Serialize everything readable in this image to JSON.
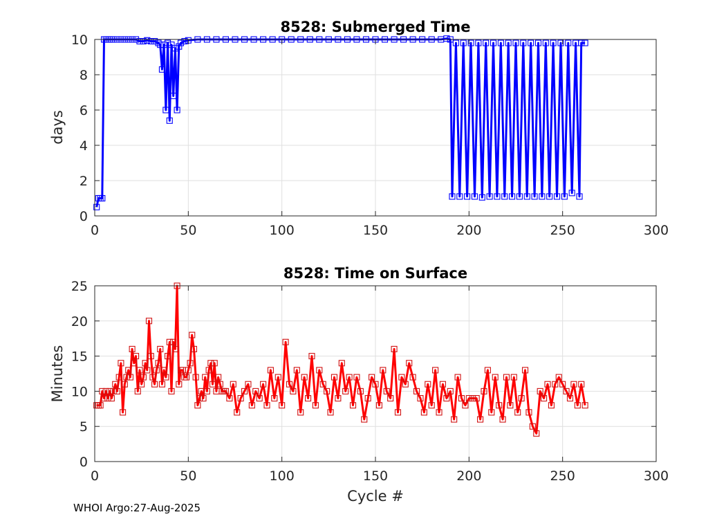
{
  "footer": "WHOI Argo:27-Aug-2025",
  "chart_data": [
    {
      "type": "line",
      "title": "8528: Submerged Time",
      "xlabel": "",
      "ylabel": "days",
      "xlim": [
        0,
        300
      ],
      "ylim": [
        0,
        10
      ],
      "xticks": [
        0,
        50,
        100,
        150,
        200,
        250,
        300
      ],
      "yticks": [
        0,
        2,
        4,
        6,
        8,
        10
      ],
      "grid": true,
      "marker": "square",
      "line_color": "#0000ff",
      "marker_color": "#0000ff",
      "series": [
        {
          "name": "Submerged Time",
          "x": [
            1,
            2,
            3,
            4,
            5,
            6,
            7,
            8,
            9,
            10,
            12,
            14,
            16,
            18,
            20,
            22,
            24,
            26,
            28,
            30,
            32,
            34,
            35,
            36,
            37,
            38,
            39,
            40,
            41,
            42,
            43,
            44,
            45,
            46,
            48,
            50,
            55,
            60,
            65,
            70,
            75,
            80,
            85,
            90,
            95,
            100,
            105,
            110,
            115,
            120,
            125,
            130,
            135,
            140,
            145,
            150,
            155,
            160,
            165,
            170,
            175,
            180,
            185,
            188,
            190,
            191,
            193,
            195,
            197,
            199,
            201,
            203,
            205,
            207,
            209,
            211,
            213,
            215,
            217,
            219,
            221,
            223,
            225,
            227,
            229,
            231,
            233,
            235,
            237,
            239,
            241,
            243,
            245,
            247,
            249,
            251,
            253,
            255,
            257,
            259,
            260,
            262
          ],
          "y": [
            0.5,
            1.0,
            1.0,
            1.0,
            10.0,
            10.0,
            10.0,
            10.0,
            10.0,
            10.0,
            10.0,
            10.0,
            10.0,
            10.0,
            10.0,
            10.0,
            9.9,
            9.9,
            9.95,
            9.9,
            9.9,
            9.8,
            9.7,
            8.3,
            9.7,
            6.0,
            9.8,
            5.4,
            9.7,
            6.8,
            9.5,
            6.0,
            9.6,
            9.8,
            9.9,
            9.95,
            10.0,
            10.0,
            10.0,
            10.0,
            10.0,
            10.0,
            10.0,
            10.0,
            10.0,
            10.0,
            10.0,
            10.0,
            10.0,
            10.0,
            10.0,
            10.0,
            10.0,
            10.0,
            10.0,
            10.0,
            10.0,
            10.0,
            10.0,
            10.0,
            10.0,
            10.0,
            10.0,
            10.05,
            10.0,
            1.1,
            9.8,
            1.1,
            9.8,
            1.1,
            9.8,
            1.1,
            9.8,
            1.05,
            9.8,
            1.1,
            9.8,
            1.1,
            9.8,
            1.1,
            9.8,
            1.1,
            9.8,
            1.1,
            9.8,
            1.1,
            9.8,
            1.1,
            9.8,
            1.1,
            9.8,
            1.1,
            9.8,
            1.1,
            9.8,
            1.1,
            9.8,
            1.3,
            9.8,
            1.1,
            9.8,
            9.8
          ]
        }
      ]
    },
    {
      "type": "line",
      "title": "8528: Time on Surface",
      "xlabel": "Cycle #",
      "ylabel": "Minutes",
      "xlim": [
        0,
        300
      ],
      "ylim": [
        0,
        25
      ],
      "xticks": [
        0,
        50,
        100,
        150,
        200,
        250,
        300
      ],
      "yticks": [
        0,
        5,
        10,
        15,
        20,
        25
      ],
      "grid": true,
      "marker": "square",
      "line_color": "#ff0000",
      "marker_color": "#ff0000",
      "series": [
        {
          "name": "Time on Surface",
          "x": [
            1,
            2,
            3,
            4,
            5,
            6,
            7,
            8,
            9,
            10,
            11,
            12,
            13,
            14,
            15,
            16,
            17,
            18,
            19,
            20,
            21,
            22,
            23,
            24,
            25,
            26,
            27,
            28,
            29,
            30,
            31,
            32,
            33,
            34,
            35,
            36,
            37,
            38,
            39,
            40,
            41,
            42,
            43,
            44,
            45,
            46,
            47,
            48,
            49,
            50,
            51,
            52,
            53,
            54,
            55,
            56,
            57,
            58,
            59,
            60,
            61,
            62,
            63,
            64,
            65,
            66,
            67,
            68,
            69,
            70,
            72,
            74,
            76,
            78,
            80,
            82,
            84,
            86,
            88,
            90,
            92,
            94,
            96,
            98,
            100,
            102,
            104,
            106,
            108,
            110,
            112,
            114,
            116,
            118,
            120,
            122,
            124,
            126,
            128,
            130,
            132,
            134,
            136,
            138,
            140,
            142,
            144,
            146,
            148,
            150,
            152,
            154,
            156,
            158,
            160,
            162,
            164,
            166,
            168,
            170,
            172,
            174,
            176,
            178,
            180,
            182,
            184,
            186,
            188,
            190,
            192,
            194,
            196,
            198,
            200,
            202,
            204,
            206,
            208,
            210,
            212,
            214,
            216,
            218,
            220,
            222,
            224,
            226,
            228,
            230,
            232,
            234,
            236,
            238,
            240,
            242,
            244,
            246,
            248,
            250,
            252,
            254,
            256,
            258,
            260,
            262
          ],
          "y": [
            8,
            8,
            8,
            10,
            9,
            10,
            9,
            10,
            9,
            10,
            11,
            10,
            12,
            14,
            7,
            11,
            12,
            13,
            12,
            16,
            14,
            15,
            10,
            13,
            11,
            12,
            14,
            13,
            20,
            15,
            12,
            11,
            13,
            14,
            16,
            11,
            13,
            12,
            15,
            17,
            10,
            17,
            16,
            25,
            11,
            13,
            13,
            12,
            12,
            13,
            14,
            18,
            16,
            12,
            8,
            9,
            10,
            9,
            12,
            10,
            13,
            14,
            11,
            14,
            10,
            12,
            11,
            10,
            10,
            10,
            9,
            11,
            7,
            9,
            10,
            11,
            8,
            10,
            9,
            11,
            8,
            13,
            9,
            12,
            8,
            17,
            11,
            10,
            13,
            7,
            12,
            9,
            15,
            8,
            13,
            11,
            10,
            7,
            12,
            9,
            14,
            10,
            12,
            8,
            12,
            10,
            6,
            9,
            12,
            11,
            8,
            13,
            10,
            9,
            16,
            7,
            12,
            11,
            14,
            12,
            10,
            9,
            7,
            11,
            8,
            13,
            7,
            11,
            9,
            10,
            6,
            12,
            9,
            8,
            9,
            9,
            9,
            6,
            10,
            13,
            7,
            12,
            8,
            6,
            12,
            8,
            12,
            7,
            9,
            13,
            7,
            5,
            4,
            10,
            9,
            11,
            8,
            11,
            12,
            11,
            10,
            9,
            11,
            8,
            11,
            8
          ]
        }
      ]
    }
  ]
}
